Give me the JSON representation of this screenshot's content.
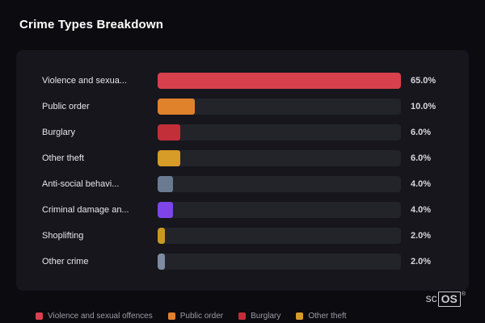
{
  "title": "Crime Types Breakdown",
  "chart_data": {
    "type": "bar",
    "orientation": "horizontal",
    "title": "Crime Types Breakdown",
    "max_value": 65,
    "categories": [
      "Violence and sexua...",
      "Public order",
      "Burglary",
      "Other theft",
      "Anti-social behavi...",
      "Criminal damage an...",
      "Shoplifting",
      "Other crime"
    ],
    "values": [
      65.0,
      10.0,
      6.0,
      6.0,
      4.0,
      4.0,
      2.0,
      2.0
    ],
    "value_labels": [
      "65.0%",
      "10.0%",
      "6.0%",
      "6.0%",
      "4.0%",
      "4.0%",
      "2.0%",
      "2.0%"
    ],
    "bar_colors": [
      "#d8404d",
      "#e0812b",
      "#c32f38",
      "#d79b28",
      "#6a7b91",
      "#7e44e8",
      "#c9991f",
      "#7d8ca2"
    ],
    "track_color": "#23232a",
    "panel_color": "#16161c",
    "background_color": "#0c0c10",
    "legend_position": "bottom"
  },
  "legend": [
    {
      "label": "Violence and sexual offences",
      "color": "#d8404d"
    },
    {
      "label": "Public order",
      "color": "#e0812b"
    },
    {
      "label": "Burglary",
      "color": "#c32f38"
    },
    {
      "label": "Other theft",
      "color": "#d79b28"
    }
  ],
  "branding": {
    "prefix": "sc",
    "boxed": "OS",
    "registered": "®"
  }
}
